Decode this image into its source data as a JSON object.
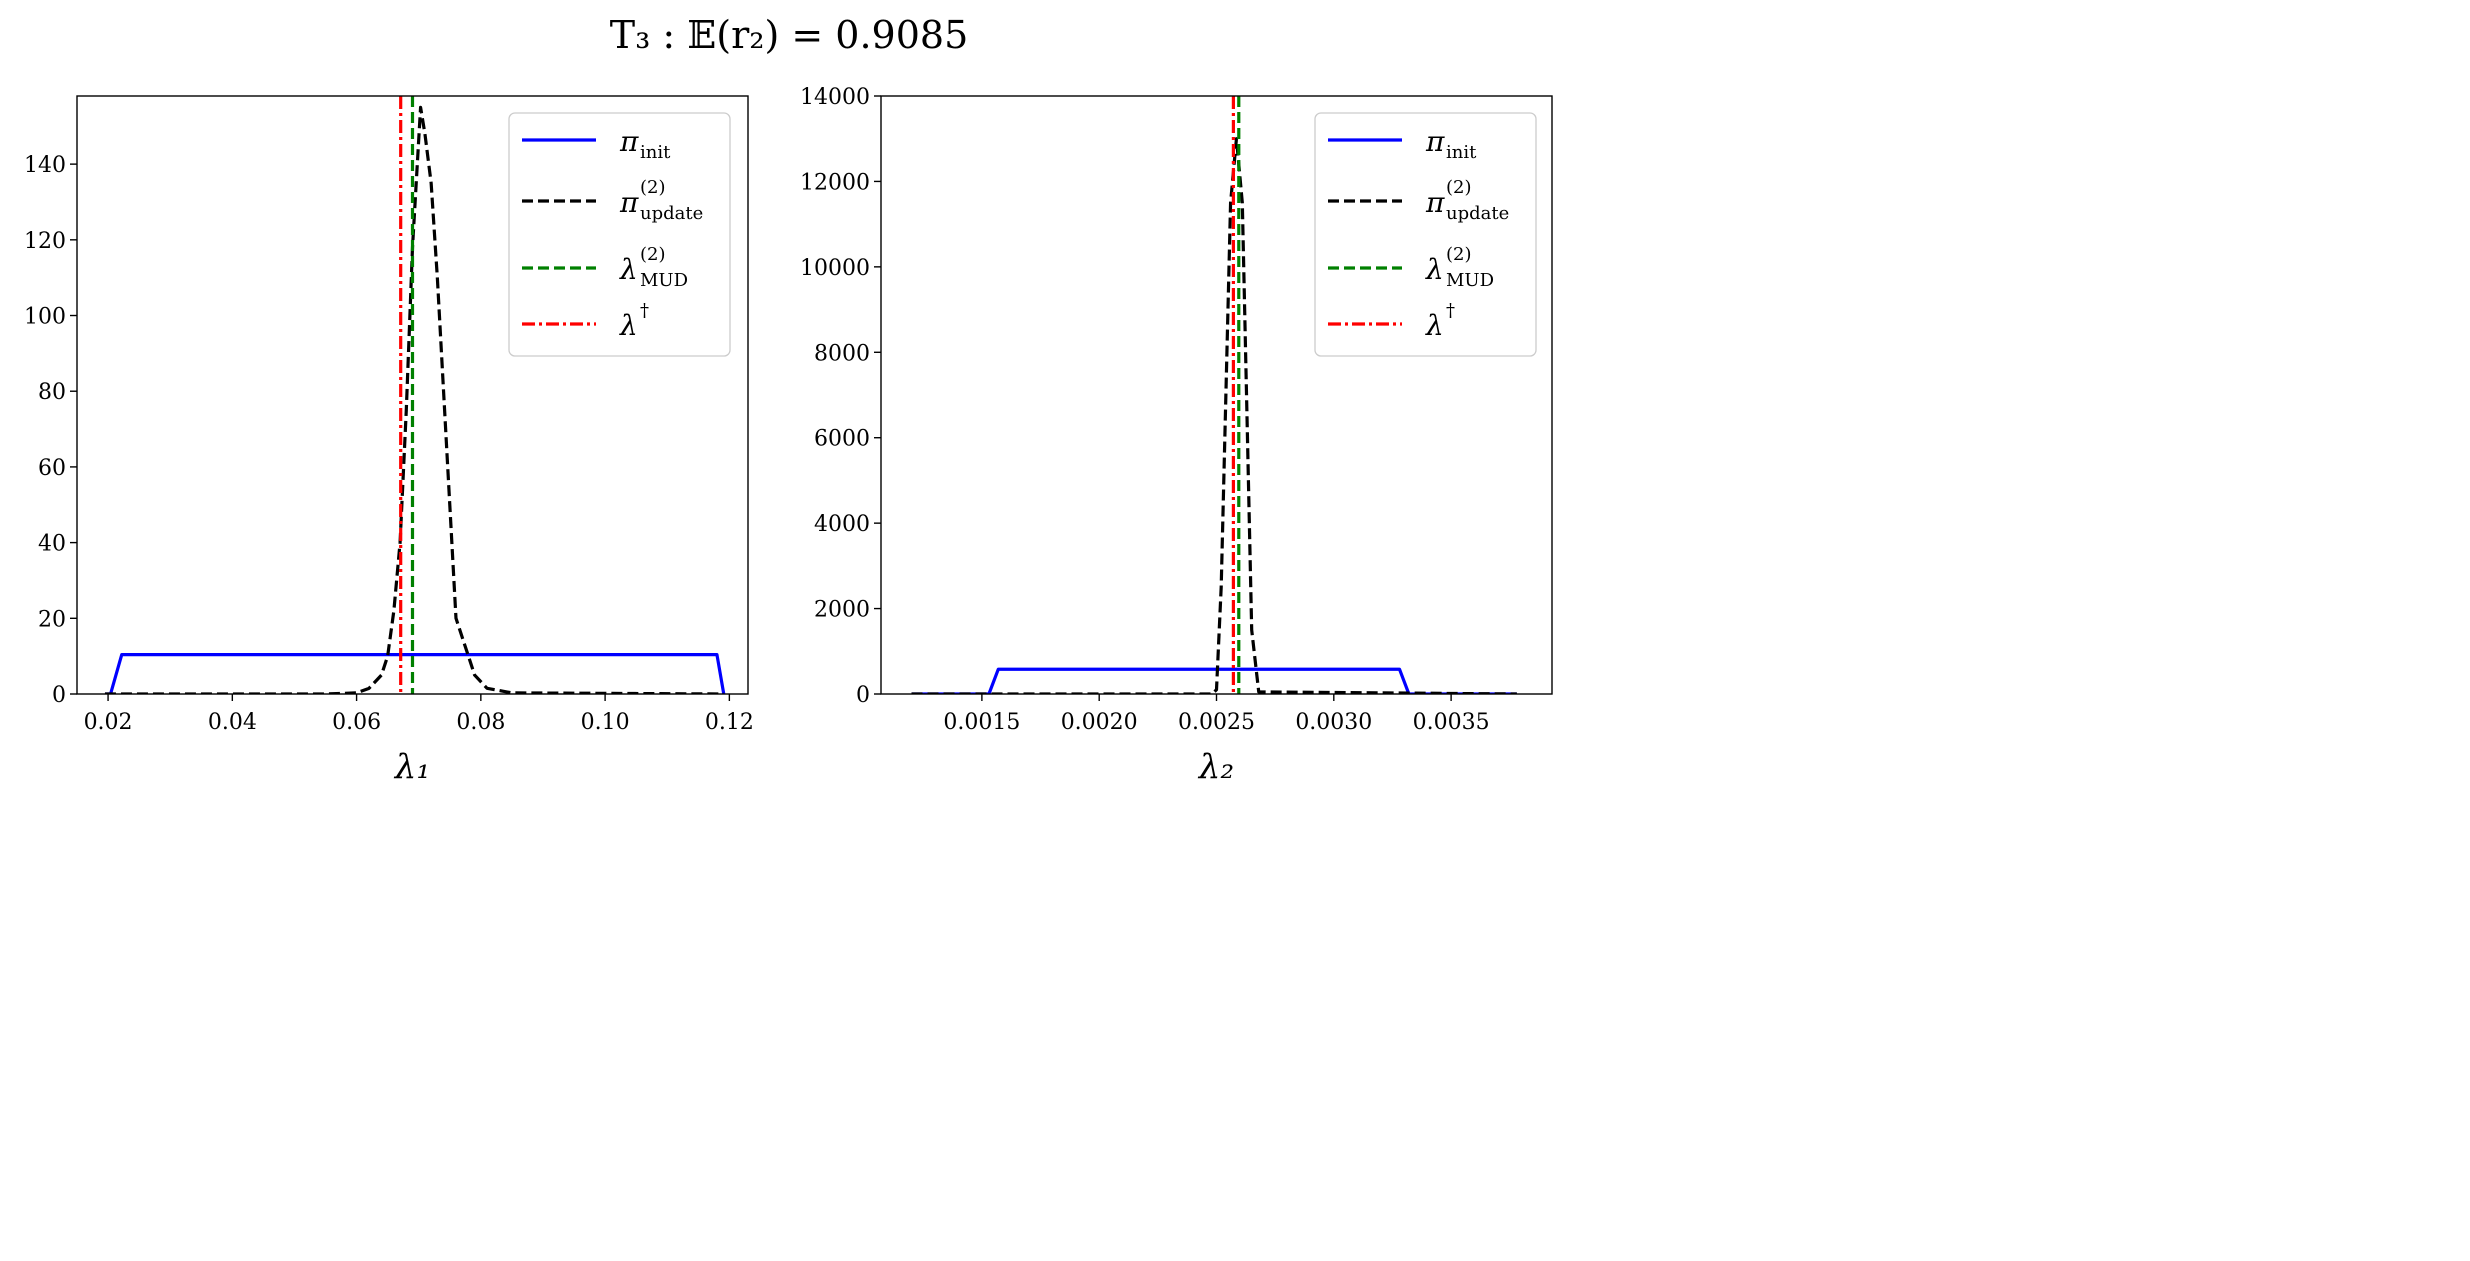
{
  "figure_title": "T₃ : 𝔼(r₂) = 0.9085",
  "chart_data": [
    {
      "type": "line",
      "xlabel": "λ₁",
      "xlim": [
        0.015,
        0.123
      ],
      "ylim": [
        0,
        158
      ],
      "xticks": [
        0.02,
        0.04,
        0.06,
        0.08,
        0.1,
        0.12
      ],
      "xtick_labels": [
        "0.02",
        "0.04",
        "0.06",
        "0.08",
        "0.10",
        "0.12"
      ],
      "yticks": [
        0,
        20,
        40,
        60,
        80,
        100,
        120,
        140
      ],
      "ytick_labels": [
        "0",
        "20",
        "40",
        "60",
        "80",
        "100",
        "120",
        "140"
      ],
      "legend_position": "top-right",
      "series": [
        {
          "name": "π_init",
          "label_main": "π",
          "label_sub": "init",
          "label_sup": "",
          "style": "solid",
          "color": "#0000ff",
          "x": [
            0.0195,
            0.0204,
            0.0222,
            0.118,
            0.1191
          ],
          "y": [
            0,
            0,
            10.4,
            10.4,
            0
          ]
        },
        {
          "name": "π_update^(2)",
          "label_main": "π",
          "label_sub": "update",
          "label_sup": "(2)",
          "style": "dashed",
          "color": "#000000",
          "x": [
            0.0195,
            0.055,
            0.06,
            0.062,
            0.064,
            0.065,
            0.066,
            0.067,
            0.068,
            0.069,
            0.0703,
            0.071,
            0.072,
            0.073,
            0.074,
            0.075,
            0.076,
            0.077,
            0.079,
            0.081,
            0.085,
            0.1191
          ],
          "y": [
            0,
            0,
            0.3,
            1.5,
            5,
            10,
            22,
            40,
            75,
            118,
            155,
            148,
            135,
            110,
            80,
            50,
            20,
            15,
            5,
            1.5,
            0.3,
            0
          ]
        },
        {
          "name": "λ_MUD^(2)",
          "label_main": "λ",
          "label_sub": "MUD",
          "label_sup": "(2)",
          "style": "dashed",
          "color": "#008000",
          "vline": 0.069
        },
        {
          "name": "λ†",
          "label_main": "λ",
          "label_sub": "",
          "label_sup": "†",
          "style": "dashdot",
          "color": "#ff0000",
          "vline": 0.0671
        }
      ]
    },
    {
      "type": "line",
      "xlabel": "λ₂",
      "xlim": [
        0.00107,
        0.00393
      ],
      "ylim": [
        0,
        14000
      ],
      "xticks": [
        0.0015,
        0.002,
        0.0025,
        0.003,
        0.0035
      ],
      "xtick_labels": [
        "0.0015",
        "0.0020",
        "0.0025",
        "0.0030",
        "0.0035"
      ],
      "yticks": [
        0,
        2000,
        4000,
        6000,
        8000,
        10000,
        12000,
        14000
      ],
      "ytick_labels": [
        "0",
        "2000",
        "4000",
        "6000",
        "8000",
        "10000",
        "12000",
        "14000"
      ],
      "legend_position": "top-right",
      "series": [
        {
          "name": "π_init",
          "label_main": "π",
          "label_sub": "init",
          "label_sup": "",
          "style": "solid",
          "color": "#0000ff",
          "x": [
            0.0012,
            0.00153,
            0.00157,
            0.00328,
            0.00332,
            0.00378
          ],
          "y": [
            0,
            0,
            580,
            580,
            0,
            0
          ]
        },
        {
          "name": "π_update^(2)",
          "label_main": "π",
          "label_sub": "update",
          "label_sup": "(2)",
          "style": "dashed",
          "color": "#000000",
          "x": [
            0.0012,
            0.00248,
            0.0025,
            0.00252,
            0.00254,
            0.00256,
            0.002585,
            0.00261,
            0.00263,
            0.00265,
            0.00268,
            0.00378
          ],
          "y": [
            0,
            0,
            100,
            2500,
            7000,
            11500,
            13000,
            11500,
            6500,
            1500,
            50,
            0
          ]
        },
        {
          "name": "λ_MUD^(2)",
          "label_main": "λ",
          "label_sub": "MUD",
          "label_sup": "(2)",
          "style": "dashed",
          "color": "#008000",
          "vline": 0.002595
        },
        {
          "name": "λ†",
          "label_main": "λ",
          "label_sub": "",
          "label_sup": "†",
          "style": "dashdot",
          "color": "#ff0000",
          "vline": 0.002572
        }
      ]
    }
  ]
}
